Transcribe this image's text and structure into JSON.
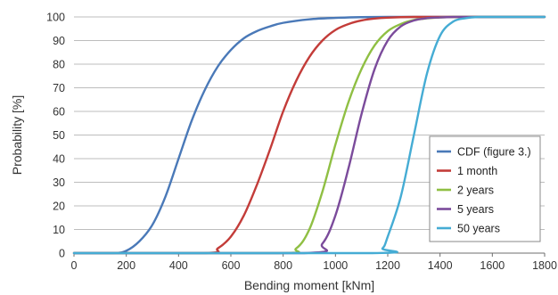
{
  "chart_data": {
    "type": "line",
    "xlabel": "Bending moment [kNm]",
    "ylabel": "Probability [%]",
    "xlim": [
      0,
      1800
    ],
    "ylim": [
      0,
      100
    ],
    "x_ticks": [
      0,
      200,
      400,
      600,
      800,
      1000,
      1200,
      1400,
      1600,
      1800
    ],
    "y_ticks": [
      0,
      10,
      20,
      30,
      40,
      50,
      60,
      70,
      80,
      90,
      100
    ],
    "grid": "horizontal",
    "legend_position": "bottom-right",
    "series": [
      {
        "name": "CDF (figure 3.)",
        "color": "#4a79b8",
        "x": [
          0,
          150,
          200,
          250,
          300,
          350,
          400,
          450,
          500,
          550,
          600,
          650,
          700,
          750,
          800,
          900,
          1000,
          1100,
          1200,
          1300,
          1400,
          1600,
          1800
        ],
        "y": [
          0,
          0,
          1,
          5,
          12,
          24,
          40,
          56,
          69,
          79,
          86,
          91,
          94,
          96,
          97.5,
          99,
          99.6,
          99.9,
          100,
          100,
          100,
          100,
          100
        ]
      },
      {
        "name": "1 month",
        "color": "#c33c39",
        "x": [
          0,
          500,
          550,
          600,
          650,
          700,
          750,
          800,
          850,
          900,
          950,
          1000,
          1050,
          1100,
          1150,
          1200,
          1300,
          1400,
          1600,
          1800
        ],
        "y": [
          0,
          0,
          2,
          7,
          16,
          29,
          44,
          60,
          73,
          83,
          90,
          94.5,
          97,
          98.5,
          99.3,
          99.7,
          100,
          100,
          100,
          100
        ]
      },
      {
        "name": "2 years",
        "color": "#8fbf43",
        "x": [
          0,
          780,
          850,
          900,
          950,
          1000,
          1050,
          1100,
          1150,
          1200,
          1250,
          1300,
          1350,
          1400,
          1450,
          1500,
          1600,
          1800
        ],
        "y": [
          0,
          0,
          2,
          10,
          26,
          46,
          64,
          78,
          88,
          94,
          97,
          98.7,
          99.4,
          99.8,
          100,
          100,
          100,
          100
        ]
      },
      {
        "name": "5 years",
        "color": "#7b4b9b",
        "x": [
          0,
          880,
          950,
          1000,
          1050,
          1100,
          1150,
          1200,
          1250,
          1300,
          1350,
          1400,
          1450,
          1500,
          1600,
          1800
        ],
        "y": [
          0,
          0,
          4,
          16,
          36,
          59,
          78,
          90,
          96,
          98.5,
          99.5,
          99.8,
          100,
          100,
          100,
          100
        ]
      },
      {
        "name": "50 years",
        "color": "#45acd4",
        "x": [
          0,
          1140,
          1180,
          1200,
          1250,
          1300,
          1350,
          1400,
          1450,
          1500,
          1550,
          1600,
          1800
        ],
        "y": [
          0,
          0,
          2,
          7,
          24,
          50,
          76,
          92,
          98,
          99.5,
          100,
          100,
          100
        ]
      }
    ]
  }
}
